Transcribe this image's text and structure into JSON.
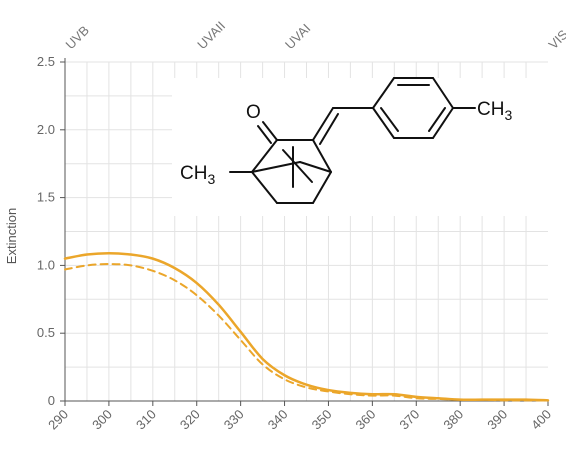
{
  "chart_data": {
    "type": "line",
    "title": "",
    "xlabel": "",
    "ylabel": "Extinction",
    "xlim": [
      290,
      400
    ],
    "ylim": [
      0,
      2.5
    ],
    "x_ticks": [
      "290",
      "300",
      "310",
      "320",
      "330",
      "340",
      "350",
      "360",
      "370",
      "380",
      "390",
      "400"
    ],
    "y_ticks": [
      "0",
      "0.5",
      "1.0",
      "1.5",
      "2.0",
      "2.5"
    ],
    "grid": true,
    "regions": [
      {
        "label": "UVB",
        "x": 290
      },
      {
        "label": "UVAII",
        "x": 320
      },
      {
        "label": "UVAI",
        "x": 340
      },
      {
        "label": "VIS",
        "x": 400
      }
    ],
    "series": [
      {
        "style": "solid",
        "x": [
          290,
          295,
          300,
          305,
          310,
          315,
          320,
          325,
          330,
          335,
          340,
          345,
          350,
          355,
          360,
          365,
          370,
          375,
          380,
          385,
          390,
          395,
          400
        ],
        "y": [
          1.05,
          1.08,
          1.09,
          1.08,
          1.05,
          0.98,
          0.87,
          0.71,
          0.51,
          0.31,
          0.19,
          0.12,
          0.08,
          0.06,
          0.05,
          0.05,
          0.03,
          0.02,
          0.01,
          0.01,
          0.01,
          0.01,
          0.005
        ]
      },
      {
        "style": "dashed",
        "x": [
          290,
          295,
          300,
          305,
          310,
          315,
          320,
          325,
          330,
          335,
          340,
          345,
          350,
          355,
          360,
          365,
          370,
          375,
          380,
          385,
          390,
          395,
          400
        ],
        "y": [
          0.97,
          1.0,
          1.01,
          1.0,
          0.96,
          0.89,
          0.78,
          0.63,
          0.45,
          0.27,
          0.16,
          0.1,
          0.07,
          0.05,
          0.04,
          0.04,
          0.02,
          0.015,
          0.01,
          0.01,
          0.005,
          0.005,
          0.003
        ]
      }
    ],
    "line_color": "#EBA62A",
    "molecule": {
      "labels": [
        "O",
        "CH3",
        "CH3"
      ]
    }
  }
}
